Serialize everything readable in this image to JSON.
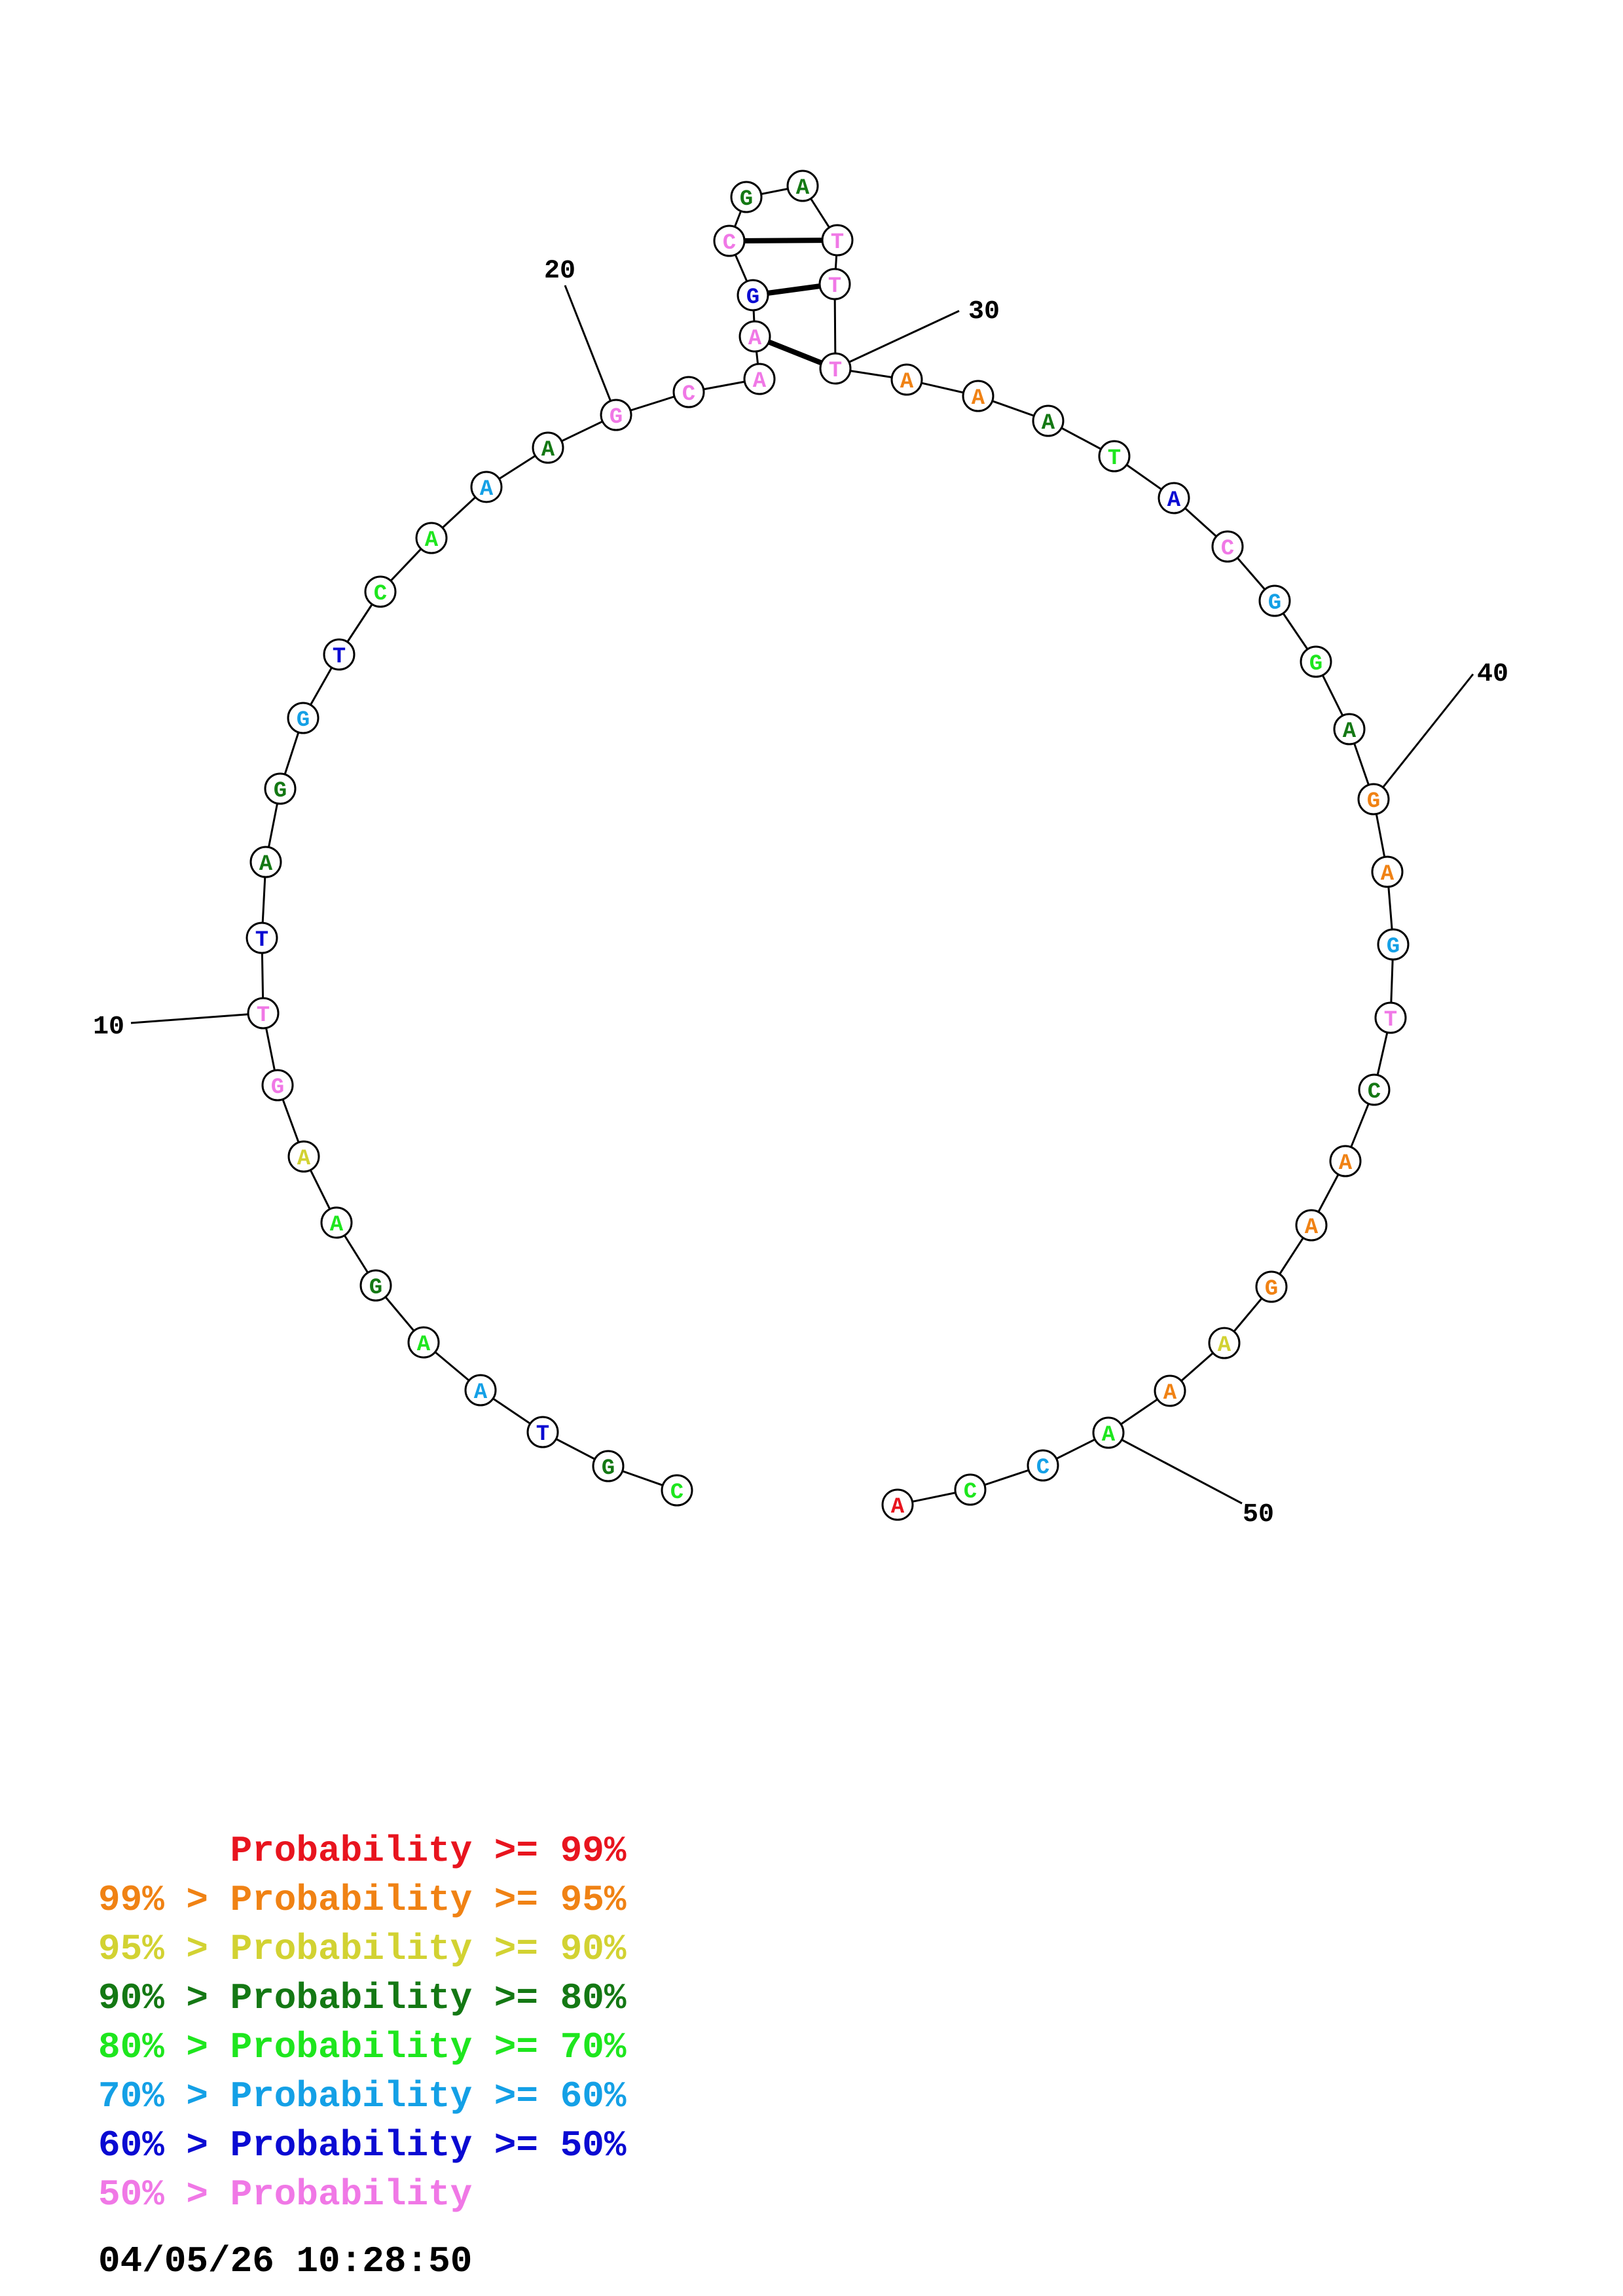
{
  "sequence": [
    "C",
    "G",
    "T",
    "A",
    "A",
    "G",
    "A",
    "A",
    "G",
    "T",
    "T",
    "A",
    "G",
    "G",
    "T",
    "C",
    "A",
    "A",
    "A",
    "G",
    "C",
    "A",
    "A",
    "G",
    "C",
    "G",
    "A",
    "T",
    "T",
    "T",
    "A",
    "A",
    "A",
    "T",
    "A",
    "C",
    "G",
    "G",
    "A",
    "G",
    "A",
    "G",
    "T",
    "C",
    "A",
    "A",
    "G",
    "A",
    "A",
    "A",
    "C",
    "C",
    "A"
  ],
  "color_class": [
    4,
    3,
    6,
    5,
    4,
    3,
    4,
    2,
    8,
    8,
    6,
    3,
    3,
    5,
    6,
    4,
    4,
    5,
    3,
    8,
    8,
    8,
    8,
    6,
    8,
    3,
    3,
    8,
    8,
    8,
    1,
    1,
    3,
    4,
    6,
    8,
    5,
    4,
    3,
    1,
    1,
    5,
    8,
    3,
    1,
    1,
    1,
    2,
    1,
    4,
    5,
    4,
    0
  ],
  "pairs": [
    [
      22,
      29
    ],
    [
      23,
      28
    ],
    [
      24,
      27
    ]
  ],
  "number_labels": [
    {
      "index": 9,
      "text": "10"
    },
    {
      "index": 19,
      "text": "20"
    },
    {
      "index": 29,
      "text": "30"
    },
    {
      "index": 39,
      "text": "40"
    },
    {
      "index": 49,
      "text": "50"
    }
  ],
  "colors": [
    "#e8141e",
    "#f08214",
    "#d2d232",
    "#147814",
    "#1ee61e",
    "#14a0e6",
    "#0a0ad2",
    "#b4b4b4",
    "#f078e6"
  ],
  "legend": [
    {
      "prefix": "",
      "label": "Probability",
      "suffix": ">= 99%",
      "color": "#e8141e"
    },
    {
      "prefix": "99% >",
      "label": "Probability",
      "suffix": ">= 95%",
      "color": "#f08214"
    },
    {
      "prefix": "95% >",
      "label": "Probability",
      "suffix": ">= 90%",
      "color": "#d2d232"
    },
    {
      "prefix": "90% >",
      "label": "Probability",
      "suffix": ">= 80%",
      "color": "#147814"
    },
    {
      "prefix": "80% >",
      "label": "Probability",
      "suffix": ">= 70%",
      "color": "#1ee61e"
    },
    {
      "prefix": "70% >",
      "label": "Probability",
      "suffix": ">= 60%",
      "color": "#14a0e6"
    },
    {
      "prefix": "60% >",
      "label": "Probability",
      "suffix": ">= 50%",
      "color": "#0a0ad2"
    },
    {
      "prefix": "50% >",
      "label": "Probability",
      "suffix": "",
      "color": "#f078e6"
    }
  ],
  "timestamp": "04/05/26 10:28:50"
}
